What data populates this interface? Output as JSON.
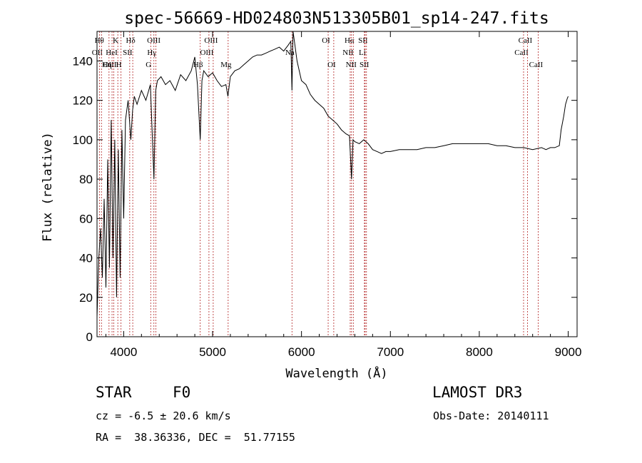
{
  "info": {
    "object_class": "STAR",
    "subclass": "F0",
    "survey": "LAMOST DR3",
    "cz": "cz = -6.5 ± 20.6 km/s",
    "obs_date": "Obs-Date: 20140111",
    "coords": "RA =  38.36336, DEC =  51.77155"
  },
  "chart_data": {
    "type": "line",
    "title": "spec-56669-HD024803N513305B01_sp14-247.fits",
    "xlabel": "Wavelength (Å)",
    "ylabel": "Flux (relative)",
    "xlim": [
      3700,
      9100
    ],
    "ylim": [
      0,
      155
    ],
    "xticks": [
      4000,
      5000,
      6000,
      7000,
      8000,
      9000
    ],
    "yticks": [
      0,
      20,
      40,
      60,
      80,
      100,
      120,
      140
    ],
    "series": [
      {
        "name": "spectrum",
        "x": [
          3700,
          3720,
          3740,
          3760,
          3780,
          3800,
          3820,
          3840,
          3860,
          3880,
          3900,
          3920,
          3940,
          3960,
          3980,
          4000,
          4020,
          4050,
          4080,
          4100,
          4120,
          4150,
          4200,
          4250,
          4300,
          4340,
          4360,
          4380,
          4420,
          4470,
          4520,
          4580,
          4640,
          4700,
          4760,
          4800,
          4830,
          4861,
          4880,
          4900,
          4950,
          5000,
          5050,
          5100,
          5150,
          5172,
          5200,
          5250,
          5300,
          5350,
          5400,
          5450,
          5500,
          5550,
          5600,
          5650,
          5700,
          5750,
          5800,
          5850,
          5880,
          5893,
          5905,
          5920,
          5950,
          6000,
          6050,
          6100,
          6150,
          6200,
          6250,
          6300,
          6350,
          6400,
          6450,
          6500,
          6540,
          6563,
          6580,
          6600,
          6650,
          6700,
          6750,
          6800,
          6850,
          6900,
          6950,
          7000,
          7100,
          7200,
          7300,
          7400,
          7500,
          7600,
          7700,
          7800,
          7900,
          8000,
          8100,
          8200,
          8300,
          8400,
          8500,
          8600,
          8700,
          8750,
          8800,
          8850,
          8900,
          8920,
          8950,
          8970,
          8990,
          9000
        ],
        "values": [
          10,
          40,
          55,
          30,
          70,
          25,
          90,
          35,
          110,
          40,
          100,
          20,
          95,
          30,
          105,
          60,
          110,
          120,
          100,
          115,
          122,
          118,
          125,
          120,
          128,
          80,
          125,
          130,
          132,
          128,
          130,
          125,
          133,
          130,
          135,
          142,
          128,
          100,
          130,
          135,
          132,
          134,
          130,
          127,
          128,
          122,
          132,
          135,
          136,
          138,
          140,
          142,
          143,
          143,
          144,
          145,
          146,
          147,
          145,
          148,
          150,
          125,
          155,
          150,
          140,
          130,
          128,
          123,
          120,
          118,
          116,
          112,
          110,
          108,
          105,
          103,
          102,
          80,
          100,
          99,
          98,
          100,
          98,
          95,
          94,
          93,
          94,
          94,
          95,
          95,
          95,
          96,
          96,
          97,
          98,
          98,
          98,
          98,
          98,
          97,
          97,
          96,
          96,
          95,
          96,
          95,
          96,
          96,
          97,
          105,
          112,
          118,
          121,
          122
        ]
      }
    ],
    "lines": [
      {
        "wl": 3727,
        "label": "OII",
        "row": 2
      },
      {
        "wl": 3750,
        "label": "Hθ",
        "row": 1
      },
      {
        "wl": 3835,
        "label": "Hη",
        "row": 3
      },
      {
        "wl": 3869,
        "label": "OIII",
        "row": 3
      },
      {
        "wl": 3889,
        "label": "HeI",
        "row": 2
      },
      {
        "wl": 3934,
        "label": "K",
        "row": 1
      },
      {
        "wl": 3970,
        "label": "H",
        "row": 3
      },
      {
        "wl": 4068,
        "label": "SII",
        "row": 2
      },
      {
        "wl": 4102,
        "label": "Hδ",
        "row": 1
      },
      {
        "wl": 4304,
        "label": "G",
        "row": 3
      },
      {
        "wl": 4340,
        "label": "Hγ",
        "row": 2
      },
      {
        "wl": 4363,
        "label": "OIII",
        "row": 1
      },
      {
        "wl": 4861,
        "label": "Hβ",
        "row": 3
      },
      {
        "wl": 4959,
        "label": "OIII",
        "row": 2
      },
      {
        "wl": 5007,
        "label": "OIII",
        "row": 1
      },
      {
        "wl": 5175,
        "label": "Mg",
        "row": 3
      },
      {
        "wl": 5893,
        "label": "Na",
        "row": 2
      },
      {
        "wl": 6300,
        "label": "OI",
        "row": 1
      },
      {
        "wl": 6363,
        "label": "OI",
        "row": 3
      },
      {
        "wl": 6548,
        "label": "NII",
        "row": 2
      },
      {
        "wl": 6563,
        "label": "Hα",
        "row": 1
      },
      {
        "wl": 6583,
        "label": "NII",
        "row": 3
      },
      {
        "wl": 6708,
        "label": "Li",
        "row": 2
      },
      {
        "wl": 6716,
        "label": "SII",
        "row": 1
      },
      {
        "wl": 6731,
        "label": "SII",
        "row": 3
      },
      {
        "wl": 8498,
        "label": "CaII",
        "row": 2
      },
      {
        "wl": 8542,
        "label": "CaII",
        "row": 1
      },
      {
        "wl": 8662,
        "label": "CaII",
        "row": 3
      }
    ]
  }
}
